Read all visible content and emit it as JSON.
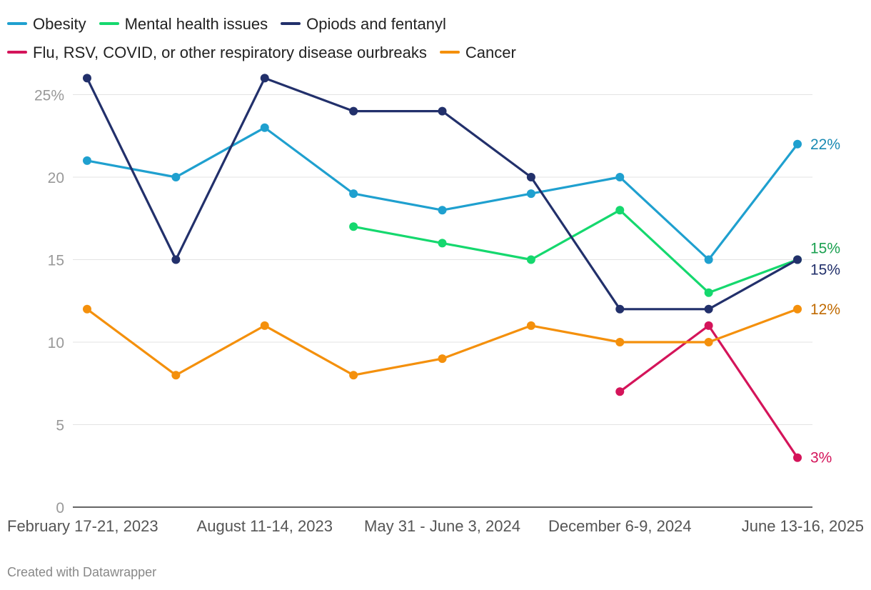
{
  "chart_data": {
    "type": "line",
    "title": "",
    "xlabel": "",
    "ylabel": "",
    "x": [
      "February 17-21, 2023",
      "",
      "August 11-14, 2023",
      "",
      "May 31 - June 3, 2024",
      "",
      "December 6-9, 2024",
      "",
      "June 13-16, 2025"
    ],
    "x_tick_labels": [
      "February 17-21, 2023",
      "August 11-14, 2023",
      "May 31 - June 3, 2024",
      "December 6-9, 2024",
      "June 13-16, 2025"
    ],
    "y_ticks": [
      "0",
      "5",
      "10",
      "15",
      "20",
      "25%"
    ],
    "ylim": [
      0,
      26
    ],
    "grid": true,
    "legend_position": "top",
    "series": [
      {
        "name": "Obesity",
        "color": "#1fa0cf",
        "values": [
          21,
          20,
          23,
          19,
          18,
          19,
          20,
          15,
          22
        ],
        "end_label": "22%",
        "label_color": "#1a8ab3"
      },
      {
        "name": "Mental health issues",
        "color": "#15d86e",
        "values": [
          null,
          null,
          null,
          17,
          16,
          15,
          18,
          13,
          15
        ],
        "end_label": "15%",
        "label_color": "#1aa050"
      },
      {
        "name": "Opiods and fentanyl",
        "color": "#22306b",
        "values": [
          26,
          15,
          26,
          24,
          24,
          20,
          12,
          12,
          15
        ],
        "end_label": "15%",
        "label_color": "#22306b"
      },
      {
        "name": "Flu, RSV, COVID, or other respiratory disease ourbreaks",
        "color": "#d4145a",
        "values": [
          null,
          null,
          null,
          null,
          null,
          null,
          7,
          11,
          3
        ],
        "end_label": "3%",
        "label_color": "#d4145a"
      },
      {
        "name": "Cancer",
        "color": "#f4900c",
        "values": [
          12,
          8,
          11,
          8,
          9,
          11,
          10,
          10,
          12
        ],
        "end_label": "12%",
        "label_color": "#c06a00"
      }
    ]
  },
  "credit": "Created with Datawrapper"
}
